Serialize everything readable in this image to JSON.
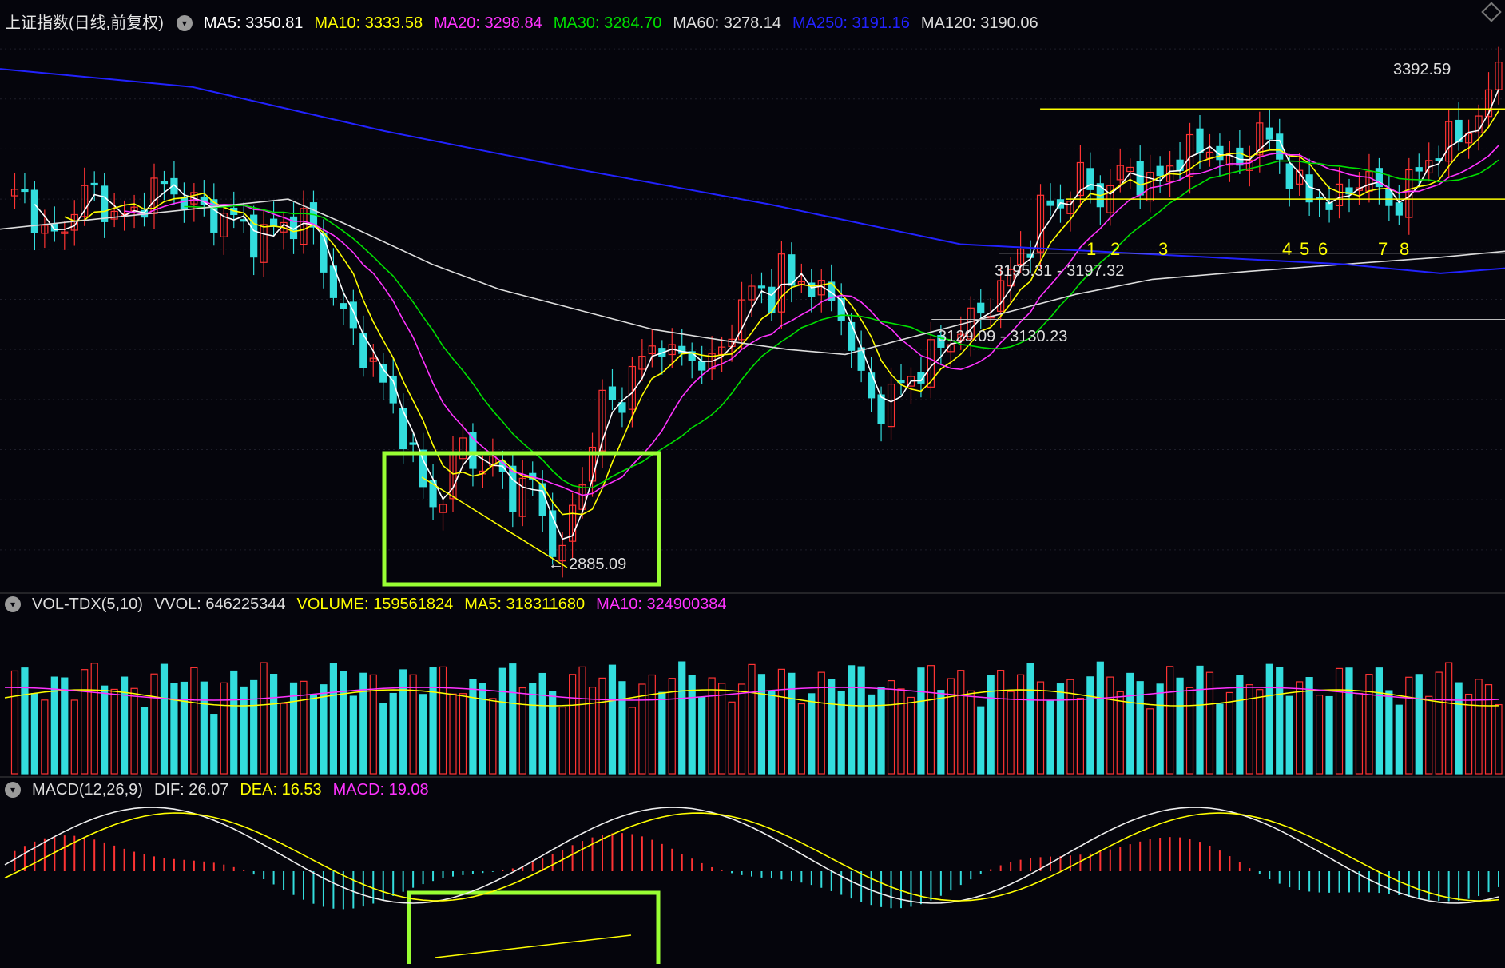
{
  "legend_main": {
    "title": "上证指数(日线,前复权)",
    "items": [
      {
        "label": "MA5: 3350.81",
        "color": "#ffffff"
      },
      {
        "label": "MA10: 3333.58",
        "color": "#ffff00"
      },
      {
        "label": "MA20: 3298.84",
        "color": "#ff33ff"
      },
      {
        "label": "MA30: 3284.70",
        "color": "#00e000"
      },
      {
        "label": "MA60: 3278.14",
        "color": "#dddddd"
      },
      {
        "label": "MA250: 3191.16",
        "color": "#2222ff"
      },
      {
        "label": "MA120: 3190.06",
        "color": "#dddddd"
      }
    ]
  },
  "legend_vol": {
    "title": "VOL-TDX(5,10)",
    "items": [
      {
        "label": "VVOL: 646225344",
        "color": "#dddddd"
      },
      {
        "label": "VOLUME: 159561824",
        "color": "#ffff00"
      },
      {
        "label": "MA5: 318311680",
        "color": "#ffff00"
      },
      {
        "label": "MA10: 324900384",
        "color": "#ff33ff"
      }
    ]
  },
  "legend_macd": {
    "title": "MACD(12,26,9)",
    "items": [
      {
        "label": "DIF: 26.07",
        "color": "#dddddd"
      },
      {
        "label": "DEA: 16.53",
        "color": "#ffff00"
      },
      {
        "label": "MACD: 19.08",
        "color": "#ff33ff"
      }
    ]
  },
  "annotations": {
    "high_label": "3392.59",
    "low_label": "2885.09",
    "zone_upper": "3195.31 - 3197.32",
    "zone_lower": "3129.09 - 3130.23",
    "touch_numbers": [
      "1",
      "2",
      "3",
      "4",
      "5",
      "6",
      "7",
      "8"
    ]
  },
  "chart_data": {
    "type": "candlestick",
    "ylim": [
      2860,
      3420
    ],
    "grid": true,
    "colors": {
      "up": "#ff3333",
      "down": "#33dddd",
      "ma5": "#ffffff",
      "ma10": "#ffff00",
      "ma20": "#ff33ff",
      "ma30": "#00e000",
      "ma60": "#dddddd",
      "ma250": "#2222ff",
      "box": "#99ff33",
      "level": "#ffff00"
    },
    "ohlc_path": [
      [
        0,
        3245
      ],
      [
        8,
        3262
      ],
      [
        16,
        3230
      ],
      [
        22,
        3205
      ],
      [
        28,
        3218
      ],
      [
        34,
        3238
      ],
      [
        42,
        3262
      ],
      [
        48,
        3250
      ],
      [
        56,
        3230
      ],
      [
        64,
        3232
      ],
      [
        72,
        3258
      ],
      [
        80,
        3262
      ],
      [
        88,
        3255
      ],
      [
        96,
        3245
      ],
      [
        104,
        3230
      ],
      [
        110,
        3235
      ],
      [
        118,
        3225
      ],
      [
        126,
        3210
      ],
      [
        134,
        3218
      ],
      [
        140,
        3225
      ],
      [
        150,
        3228
      ],
      [
        156,
        3215
      ],
      [
        162,
        3172
      ],
      [
        168,
        3140
      ],
      [
        174,
        3118
      ],
      [
        180,
        3100
      ],
      [
        186,
        3080
      ],
      [
        192,
        3055
      ],
      [
        198,
        3030
      ],
      [
        204,
        2998
      ],
      [
        210,
        2960
      ],
      [
        216,
        2945
      ],
      [
        222,
        2960
      ],
      [
        228,
        3010
      ],
      [
        234,
        3000
      ],
      [
        240,
        2975
      ],
      [
        246,
        2990
      ],
      [
        252,
        2965
      ],
      [
        258,
        2950
      ],
      [
        264,
        2975
      ],
      [
        270,
        2935
      ],
      [
        276,
        2902
      ],
      [
        280,
        2890
      ],
      [
        284,
        2935
      ],
      [
        290,
        2975
      ],
      [
        296,
        3010
      ],
      [
        300,
        3050
      ],
      [
        306,
        3045
      ],
      [
        312,
        3060
      ],
      [
        318,
        3085
      ],
      [
        324,
        3100
      ],
      [
        330,
        3110
      ],
      [
        336,
        3085
      ],
      [
        342,
        3100
      ],
      [
        348,
        3090
      ],
      [
        354,
        3080
      ],
      [
        360,
        3100
      ],
      [
        366,
        3130
      ],
      [
        372,
        3150
      ],
      [
        378,
        3165
      ],
      [
        384,
        3150
      ],
      [
        390,
        3180
      ],
      [
        396,
        3160
      ],
      [
        402,
        3175
      ],
      [
        408,
        3155
      ],
      [
        414,
        3150
      ],
      [
        420,
        3140
      ],
      [
        426,
        3090
      ],
      [
        432,
        3060
      ],
      [
        438,
        3040
      ],
      [
        444,
        3050
      ],
      [
        450,
        3065
      ],
      [
        456,
        3075
      ],
      [
        462,
        3085
      ],
      [
        468,
        3100
      ],
      [
        474,
        3110
      ],
      [
        480,
        3120
      ],
      [
        486,
        3130
      ],
      [
        492,
        3140
      ],
      [
        498,
        3155
      ],
      [
        504,
        3170
      ],
      [
        510,
        3200
      ],
      [
        516,
        3210
      ],
      [
        522,
        3250
      ],
      [
        528,
        3240
      ],
      [
        534,
        3255
      ],
      [
        540,
        3270
      ],
      [
        546,
        3260
      ],
      [
        552,
        3250
      ],
      [
        558,
        3270
      ],
      [
        564,
        3285
      ],
      [
        570,
        3270
      ],
      [
        576,
        3260
      ],
      [
        582,
        3280
      ],
      [
        588,
        3290
      ],
      [
        594,
        3295
      ],
      [
        600,
        3300
      ],
      [
        606,
        3305
      ],
      [
        612,
        3285
      ],
      [
        618,
        3280
      ],
      [
        624,
        3300
      ],
      [
        630,
        3315
      ],
      [
        636,
        3305
      ],
      [
        642,
        3285
      ],
      [
        648,
        3265
      ],
      [
        654,
        3250
      ],
      [
        660,
        3255
      ],
      [
        666,
        3245
      ],
      [
        672,
        3250
      ],
      [
        678,
        3270
      ],
      [
        684,
        3275
      ],
      [
        690,
        3255
      ],
      [
        696,
        3245
      ],
      [
        702,
        3250
      ],
      [
        708,
        3275
      ],
      [
        714,
        3290
      ],
      [
        720,
        3300
      ],
      [
        726,
        3310
      ],
      [
        732,
        3315
      ],
      [
        738,
        3330
      ],
      [
        744,
        3338
      ],
      [
        750,
        3392
      ]
    ],
    "ma250": [
      [
        0,
        3380
      ],
      [
        200,
        3362
      ],
      [
        400,
        3318
      ],
      [
        600,
        3280
      ],
      [
        800,
        3245
      ],
      [
        1000,
        3205
      ],
      [
        1200,
        3195
      ],
      [
        1400,
        3185
      ],
      [
        1500,
        3176
      ],
      [
        1567,
        3181
      ]
    ],
    "ma120": [
      [
        0,
        3200
      ],
      [
        100,
        3235
      ],
      [
        200,
        3252
      ],
      [
        300,
        3240
      ],
      [
        400,
        3205
      ],
      [
        500,
        3178
      ],
      [
        600,
        3152
      ],
      [
        700,
        3130
      ],
      [
        800,
        3112
      ],
      [
        900,
        3118
      ],
      [
        1000,
        3140
      ],
      [
        1100,
        3160
      ],
      [
        1200,
        3170
      ],
      [
        1300,
        3180
      ],
      [
        1400,
        3188
      ],
      [
        1500,
        3200
      ],
      [
        1567,
        3210
      ]
    ],
    "ma60": [
      [
        0,
        3220
      ],
      [
        150,
        3235
      ],
      [
        300,
        3250
      ],
      [
        360,
        3225
      ],
      [
        450,
        3185
      ],
      [
        520,
        3160
      ],
      [
        600,
        3140
      ],
      [
        680,
        3120
      ],
      [
        760,
        3108
      ],
      [
        820,
        3100
      ],
      [
        880,
        3095
      ],
      [
        960,
        3115
      ],
      [
        1040,
        3135
      ],
      [
        1120,
        3155
      ],
      [
        1200,
        3170
      ],
      [
        1300,
        3178
      ],
      [
        1400,
        3185
      ],
      [
        1500,
        3192
      ],
      [
        1567,
        3198
      ]
    ],
    "volume": {
      "ma5_level": 318311680,
      "ma10_level": 324900384
    },
    "macd": {
      "dif": 26.07,
      "dea": 16.53,
      "macd": 19.08
    }
  }
}
